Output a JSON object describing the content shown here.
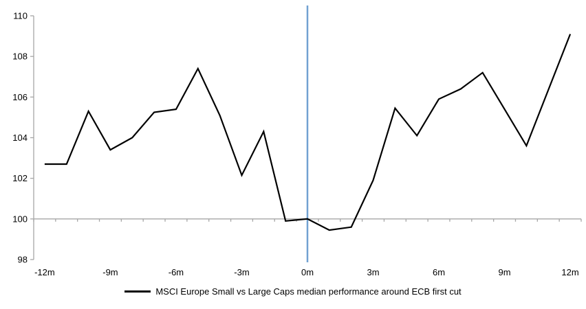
{
  "chart_data": {
    "type": "line",
    "title": "",
    "xlabel": "",
    "ylabel": "",
    "x": [
      -12,
      -11,
      -10,
      -9,
      -8,
      -7,
      -6,
      -5,
      -4,
      -3,
      -2,
      -1,
      0,
      1,
      2,
      3,
      4,
      5,
      6,
      7,
      8,
      9,
      10,
      11,
      12
    ],
    "series": [
      {
        "name": "MSCI Europe Small vs Large Caps median performance around ECB first cut",
        "values": [
          102.7,
          102.7,
          105.3,
          103.4,
          104.0,
          105.25,
          105.4,
          107.4,
          105.1,
          102.15,
          104.3,
          99.9,
          100.0,
          99.45,
          99.6,
          101.9,
          105.45,
          104.1,
          105.9,
          106.4,
          107.2,
          105.4,
          103.6,
          106.35,
          109.1
        ]
      }
    ],
    "ylim": [
      98,
      110
    ],
    "yticks": [
      98,
      100,
      102,
      104,
      106,
      108,
      110
    ],
    "xtick_months": [
      -12,
      -9,
      -6,
      -3,
      0,
      3,
      6,
      9,
      12
    ],
    "xtick_labels": [
      "-12m",
      "-9m",
      "-6m",
      "-3m",
      "0m",
      "3m",
      "6m",
      "9m",
      "12m"
    ],
    "baseline_value": 100,
    "event_line_x": 0,
    "grid": false,
    "legend_position": "bottom"
  },
  "legend": {
    "label": "MSCI Europe Small vs Large Caps median performance around ECB first cut"
  },
  "colors": {
    "series_line": "#000000",
    "event_line": "#71A1D1",
    "axis": "#A6A6A6",
    "text": "#000000",
    "background": "#FFFFFF"
  }
}
